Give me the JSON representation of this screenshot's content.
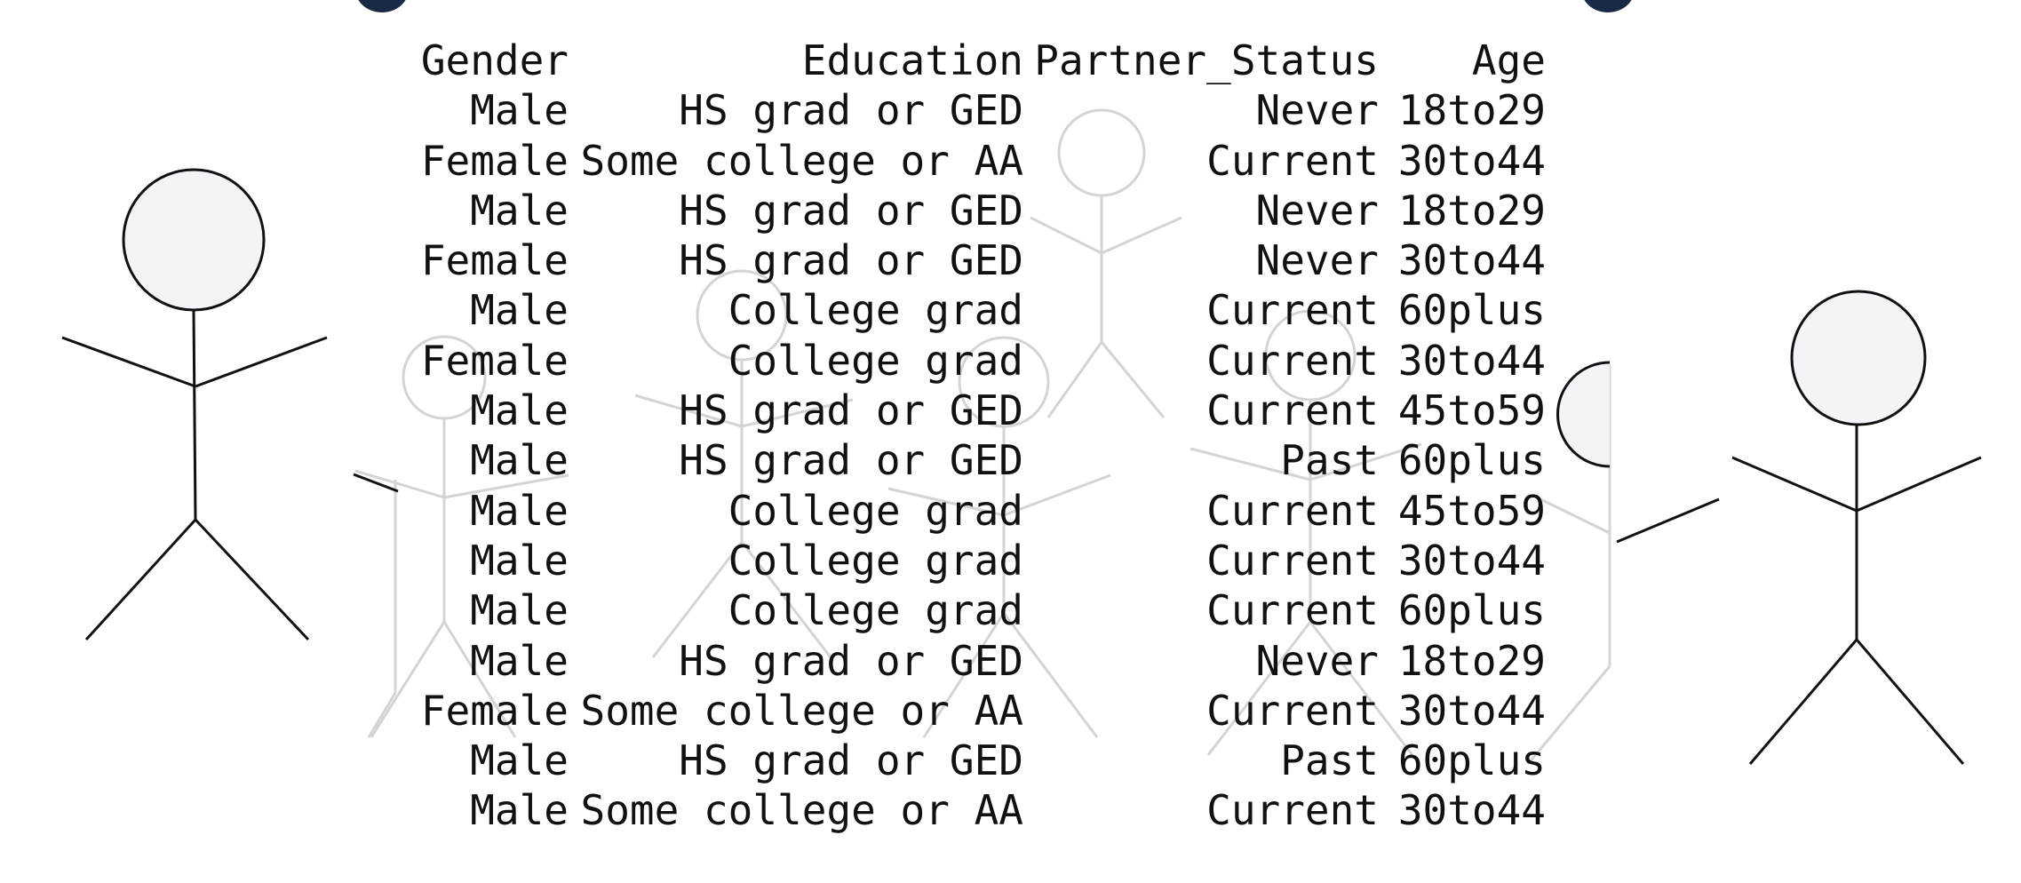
{
  "table": {
    "columns": [
      "Gender",
      "Education",
      "Partner_Status",
      "Age"
    ],
    "rows": [
      [
        "Male",
        "HS grad or GED",
        "Never",
        "18to29"
      ],
      [
        "Female",
        "Some college or AA",
        "Current",
        "30to44"
      ],
      [
        "Male",
        "HS grad or GED",
        "Never",
        "18to29"
      ],
      [
        "Female",
        "HS grad or GED",
        "Never",
        "30to44"
      ],
      [
        "Male",
        "College grad",
        "Current",
        "60plus"
      ],
      [
        "Female",
        "College grad",
        "Current",
        "30to44"
      ],
      [
        "Male",
        "HS grad or GED",
        "Current",
        "45to59"
      ],
      [
        "Male",
        "HS grad or GED",
        "Past",
        "60plus"
      ],
      [
        "Male",
        "College grad",
        "Current",
        "45to59"
      ],
      [
        "Male",
        "College grad",
        "Current",
        "30to44"
      ],
      [
        "Male",
        "College grad",
        "Current",
        "60plus"
      ],
      [
        "Male",
        "HS grad or GED",
        "Never",
        "18to29"
      ],
      [
        "Female",
        "Some college or AA",
        "Current",
        "30to44"
      ],
      [
        "Male",
        "HS grad or GED",
        "Past",
        "60plus"
      ],
      [
        "Male",
        "Some college or AA",
        "Current",
        "30to44"
      ]
    ]
  },
  "figures": [
    {
      "name": "stick-figure-left",
      "style": "dark"
    },
    {
      "name": "stick-figure-right",
      "style": "dark"
    },
    {
      "name": "stick-figure-background-1",
      "style": "faint"
    },
    {
      "name": "stick-figure-background-2",
      "style": "faint"
    },
    {
      "name": "stick-figure-background-3",
      "style": "faint"
    },
    {
      "name": "stick-figure-background-4",
      "style": "faint"
    },
    {
      "name": "stick-figure-background-5",
      "style": "faint"
    },
    {
      "name": "stick-figure-background-6",
      "style": "faint"
    }
  ],
  "colors": {
    "text": "#111111",
    "figure_dark": "#111111",
    "figure_faint": "#d4d4d4",
    "head_fill": "#f4f3f8",
    "heading_fragment": "#1b2a44"
  }
}
